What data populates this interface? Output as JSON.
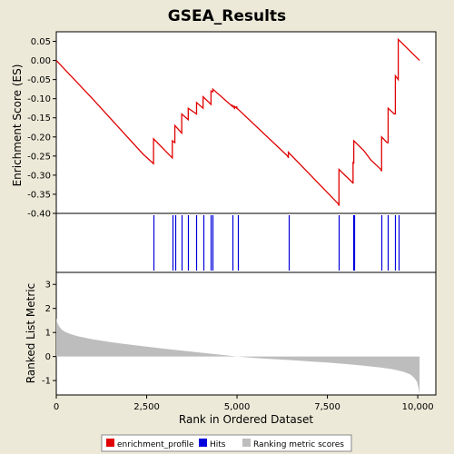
{
  "chart_data": {
    "type": "line",
    "title": "GSEA_Results",
    "xlabel": "Rank in Ordered Dataset",
    "xlim": [
      0,
      10500
    ],
    "xticks": [
      0,
      2500,
      5000,
      7500,
      10000
    ],
    "xtick_labels": [
      "0",
      "2,500",
      "5,000",
      "7,500",
      "10,000"
    ],
    "panels": [
      {
        "id": "enrichment",
        "ylabel": "Enrichment Score (ES)",
        "ylim": [
          -0.4,
          0.075
        ],
        "yticks": [
          0.05,
          0.0,
          -0.05,
          -0.1,
          -0.15,
          -0.2,
          -0.25,
          -0.3,
          -0.35,
          -0.4
        ],
        "ytick_labels": [
          "0.05",
          "0.00",
          "-0.05",
          "-0.10",
          "-0.15",
          "-0.20",
          "-0.25",
          "-0.30",
          "-0.35",
          "-0.40"
        ],
        "series": [
          {
            "name": "enrichment_profile",
            "color": "#e00000",
            "x": [
              0,
              1000,
              2400,
              2690,
              2690,
              3210,
              3210,
              3280,
              3280,
              3470,
              3470,
              3650,
              3650,
              3880,
              3880,
              4060,
              4060,
              4280,
              4280,
              4330,
              4330,
              4870,
              4870,
              4930,
              4930,
              4990,
              4990,
              5000,
              6400,
              6420,
              6420,
              7800,
              7820,
              7820,
              8200,
              8210,
              8210,
              8230,
              8230,
              8500,
              8700,
              8980,
              9000,
              9000,
              9150,
              9180,
              9180,
              9350,
              9380,
              9380,
              9460,
              9460,
              10050
            ],
            "y": [
              0.0,
              -0.1,
              -0.245,
              -0.27,
              -0.205,
              -0.255,
              -0.21,
              -0.215,
              -0.17,
              -0.19,
              -0.14,
              -0.155,
              -0.125,
              -0.14,
              -0.11,
              -0.125,
              -0.095,
              -0.115,
              -0.08,
              -0.082,
              -0.075,
              -0.12,
              -0.118,
              -0.125,
              -0.12,
              -0.125,
              -0.12,
              -0.125,
              -0.25,
              -0.255,
              -0.24,
              -0.375,
              -0.38,
              -0.285,
              -0.32,
              -0.322,
              -0.265,
              -0.27,
              -0.21,
              -0.235,
              -0.26,
              -0.285,
              -0.29,
              -0.2,
              -0.215,
              -0.215,
              -0.125,
              -0.14,
              -0.14,
              -0.04,
              -0.05,
              0.055,
              0.0
            ]
          }
        ]
      },
      {
        "id": "hits",
        "series": [
          {
            "name": "Hits",
            "color": "#0000dd",
            "x": [
              2690,
              3210,
              3280,
              3470,
              3650,
              3880,
              4060,
              4280,
              4330,
              4870,
              5020,
              6420,
              7820,
              8210,
              8230,
              9000,
              9180,
              9380,
              9460
            ]
          }
        ]
      },
      {
        "id": "ranked",
        "ylabel": "Ranked List Metric",
        "ylim": [
          -1.6,
          3.5
        ],
        "yticks": [
          3,
          2,
          1,
          0,
          -1
        ],
        "ytick_labels": [
          "3",
          "2",
          "1",
          "0",
          "-1"
        ],
        "series": [
          {
            "name": "Ranking metric scores",
            "color": "#bdbdbd",
            "x": [
              0,
              30,
              80,
              150,
              250,
              400,
              600,
              1000,
              1500,
              2000,
              2500,
              3000,
              3500,
              4000,
              4500,
              5000,
              5500,
              6000,
              6500,
              7000,
              7500,
              8000,
              8500,
              9000,
              9300,
              9600,
              9800,
              9900,
              9980,
              10020,
              10050
            ],
            "y": [
              1.6,
              1.4,
              1.25,
              1.12,
              1.02,
              0.93,
              0.84,
              0.72,
              0.6,
              0.5,
              0.41,
              0.32,
              0.24,
              0.16,
              0.08,
              0.0,
              -0.06,
              -0.11,
              -0.15,
              -0.2,
              -0.25,
              -0.31,
              -0.38,
              -0.46,
              -0.53,
              -0.63,
              -0.75,
              -0.88,
              -1.05,
              -1.3,
              -1.6
            ]
          }
        ]
      }
    ],
    "legend": {
      "placement": "bottom",
      "entries": [
        {
          "label": "enrichment_profile",
          "color": "#e00000"
        },
        {
          "label": "Hits",
          "color": "#0000dd"
        },
        {
          "label": "Ranking metric scores",
          "color": "#bdbdbd"
        }
      ]
    },
    "grid": false
  }
}
